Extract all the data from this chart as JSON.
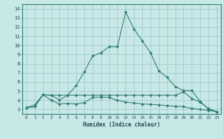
{
  "xlabel": "Humidex (Indice chaleur)",
  "background_color": "#c8e8e8",
  "grid_color": "#a0c8c8",
  "line_color": "#2e7d6e",
  "xlim": [
    -0.5,
    23.5
  ],
  "ylim": [
    2.5,
    14.5
  ],
  "xticks": [
    0,
    1,
    2,
    3,
    4,
    5,
    6,
    7,
    8,
    9,
    10,
    11,
    12,
    13,
    14,
    15,
    16,
    17,
    18,
    19,
    20,
    21,
    22,
    23
  ],
  "yticks": [
    3,
    4,
    5,
    6,
    7,
    8,
    9,
    10,
    11,
    12,
    13,
    14
  ],
  "series1_x": [
    0,
    1,
    2,
    3,
    4,
    5,
    6,
    7,
    8,
    9,
    10,
    11,
    12,
    13,
    14,
    15,
    16,
    17,
    18,
    19,
    20,
    21,
    22,
    23
  ],
  "series1_y": [
    3.2,
    3.3,
    4.6,
    4.0,
    3.6,
    3.65,
    3.6,
    3.75,
    4.3,
    4.35,
    4.3,
    4.0,
    3.8,
    3.7,
    3.6,
    3.55,
    3.5,
    3.4,
    3.35,
    3.3,
    3.1,
    3.0,
    2.9,
    2.75
  ],
  "series2_x": [
    0,
    1,
    2,
    3,
    4,
    5,
    6,
    7,
    8,
    9,
    10,
    11,
    12,
    13,
    14,
    15,
    16,
    17,
    18,
    19,
    20,
    21,
    22,
    23
  ],
  "series2_y": [
    3.2,
    3.3,
    4.6,
    4.55,
    4.55,
    4.55,
    4.55,
    4.55,
    4.55,
    4.55,
    4.55,
    4.55,
    4.55,
    4.55,
    4.55,
    4.55,
    4.55,
    4.55,
    4.55,
    4.9,
    4.2,
    3.8,
    3.1,
    2.75
  ],
  "series3_x": [
    0,
    1,
    2,
    3,
    4,
    5,
    6,
    7,
    8,
    9,
    10,
    11,
    12,
    13,
    14,
    15,
    16,
    17,
    18,
    19,
    20,
    21,
    22,
    23
  ],
  "series3_y": [
    3.2,
    3.5,
    4.6,
    4.55,
    4.05,
    4.55,
    5.6,
    7.1,
    8.85,
    9.2,
    9.85,
    9.85,
    13.65,
    11.8,
    10.5,
    9.2,
    7.2,
    6.5,
    5.5,
    5.05,
    5.05,
    3.9,
    3.05,
    2.75
  ]
}
